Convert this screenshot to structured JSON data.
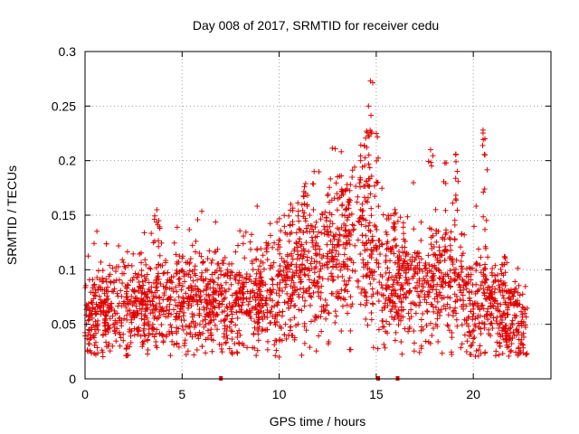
{
  "chart_data": {
    "type": "scatter",
    "title": "Day 008 of 2017, SRMTID for receiver cedu",
    "xlabel": "GPS time / hours",
    "ylabel": "SRMTID / TECUs",
    "xlim": [
      0,
      24
    ],
    "ylim": [
      0,
      0.3
    ],
    "xticks": [
      0,
      5,
      10,
      15,
      20
    ],
    "yticks": [
      0,
      0.05,
      0.1,
      0.15,
      0.2,
      0.25,
      0.3
    ],
    "xtick_labels": [
      "0",
      "5",
      "10",
      "15",
      "20"
    ],
    "ytick_labels": [
      "0",
      "0.05",
      "0.1",
      "0.15",
      "0.2",
      "0.25",
      "0.3"
    ],
    "grid": true,
    "marker": "+",
    "marker_color": "#e00000",
    "series": [
      {
        "name": "SRMTID",
        "trend": [
          [
            0.0,
            0.055
          ],
          [
            0.5,
            0.058
          ],
          [
            1.0,
            0.06
          ],
          [
            2.0,
            0.062
          ],
          [
            3.0,
            0.065
          ],
          [
            4.0,
            0.07
          ],
          [
            5.0,
            0.073
          ],
          [
            6.0,
            0.07
          ],
          [
            7.0,
            0.072
          ],
          [
            8.0,
            0.07
          ],
          [
            9.0,
            0.078
          ],
          [
            10.0,
            0.083
          ],
          [
            11.0,
            0.1
          ],
          [
            12.0,
            0.1
          ],
          [
            13.0,
            0.115
          ],
          [
            14.0,
            0.13
          ],
          [
            15.0,
            0.105
          ],
          [
            16.0,
            0.09
          ],
          [
            17.0,
            0.08
          ],
          [
            18.0,
            0.085
          ],
          [
            19.0,
            0.09
          ],
          [
            20.0,
            0.072
          ],
          [
            21.0,
            0.065
          ],
          [
            22.0,
            0.055
          ],
          [
            22.8,
            0.045
          ]
        ],
        "peaks": [
          [
            14.7,
            0.273
          ],
          [
            14.6,
            0.25
          ],
          [
            14.5,
            0.227
          ],
          [
            15.0,
            0.225
          ],
          [
            20.5,
            0.228
          ],
          [
            20.6,
            0.22
          ],
          [
            17.8,
            0.21
          ],
          [
            13.2,
            0.186
          ],
          [
            19.1,
            0.206
          ],
          [
            18.6,
            0.198
          ],
          [
            11.8,
            0.19
          ],
          [
            3.7,
            0.155
          ],
          [
            3.8,
            0.145
          ],
          [
            21.6,
            0.112
          ],
          [
            16.0,
            0.152
          ],
          [
            16.4,
            0.143
          ],
          [
            13.5,
            0.178
          ],
          [
            14.2,
            0.2
          ],
          [
            11.3,
            0.176
          ],
          [
            10.6,
            0.16
          ]
        ],
        "low_marks": [
          [
            7.0,
            0
          ],
          [
            15.1,
            0
          ],
          [
            16.1,
            0
          ]
        ]
      }
    ]
  }
}
